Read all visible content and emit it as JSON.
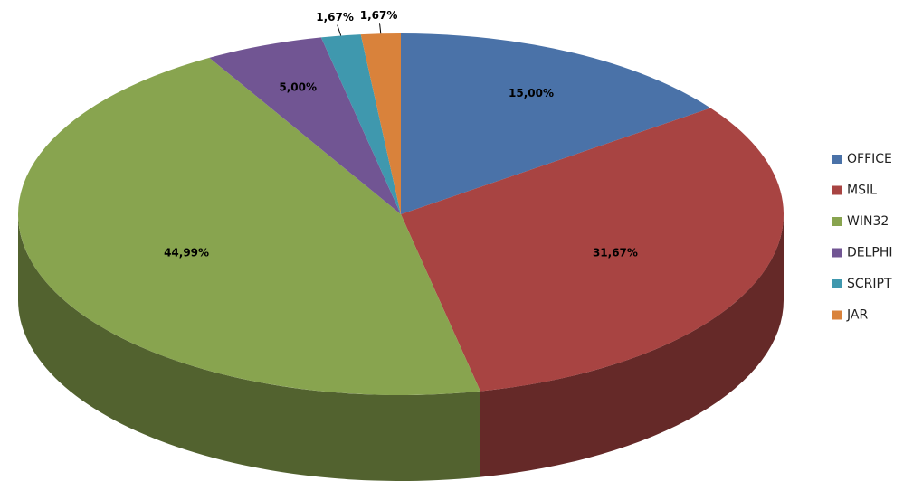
{
  "chart_data": {
    "type": "pie",
    "categories": [
      "OFFICE",
      "MSIL",
      "WIN32",
      "DELPHI",
      "SCRIPT",
      "JAR"
    ],
    "values": [
      15.0,
      31.67,
      44.99,
      5.0,
      1.67,
      1.67
    ],
    "value_labels": [
      "15,00%",
      "31,67%",
      "44,99%",
      "5,00%",
      "1,67%",
      "1,67%"
    ],
    "colors": [
      "#4a72a8",
      "#a84442",
      "#88a44f",
      "#715593",
      "#3f98ae",
      "#d9823b"
    ],
    "legend": "right"
  }
}
